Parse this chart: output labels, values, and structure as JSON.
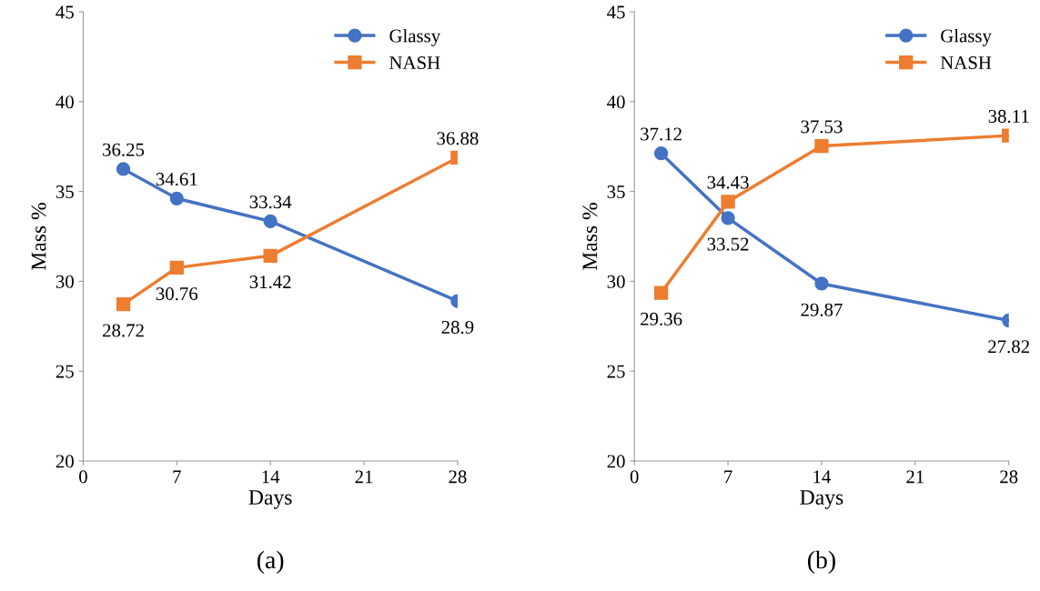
{
  "chart_data": [
    {
      "type": "line",
      "xlabel": "Days",
      "ylabel": "Mass %",
      "x": [
        3,
        7,
        14,
        28
      ],
      "xlim": [
        0,
        28
      ],
      "xticks": [
        0,
        7,
        14,
        21,
        28
      ],
      "ylim": [
        20,
        45
      ],
      "yticks": [
        20,
        25,
        30,
        35,
        40,
        45
      ],
      "grid": false,
      "legend": "top right",
      "data_labels": true,
      "annotations": [
        "(a)"
      ],
      "series": [
        {
          "name": "Glassy",
          "color": "#4472c4",
          "marker": "circle",
          "values": [
            36.25,
            34.61,
            33.34,
            28.9
          ]
        },
        {
          "name": "NASH",
          "color": "#ed7d31",
          "marker": "square",
          "values": [
            28.72,
            30.76,
            31.42,
            36.88
          ]
        }
      ]
    },
    {
      "type": "line",
      "xlabel": "Days",
      "ylabel": "Mass %",
      "x": [
        2,
        7,
        14,
        28
      ],
      "xlim": [
        0,
        28
      ],
      "xticks": [
        0,
        7,
        14,
        21,
        28
      ],
      "ylim": [
        20,
        45
      ],
      "yticks": [
        20,
        25,
        30,
        35,
        40,
        45
      ],
      "grid": false,
      "legend": "top right",
      "data_labels": true,
      "annotations": [
        "(b)"
      ],
      "series": [
        {
          "name": "Glassy",
          "color": "#4472c4",
          "marker": "circle",
          "values": [
            37.12,
            33.52,
            29.87,
            27.82
          ]
        },
        {
          "name": "NASH",
          "color": "#ed7d31",
          "marker": "square",
          "values": [
            29.36,
            34.43,
            37.53,
            38.11
          ]
        }
      ]
    }
  ]
}
